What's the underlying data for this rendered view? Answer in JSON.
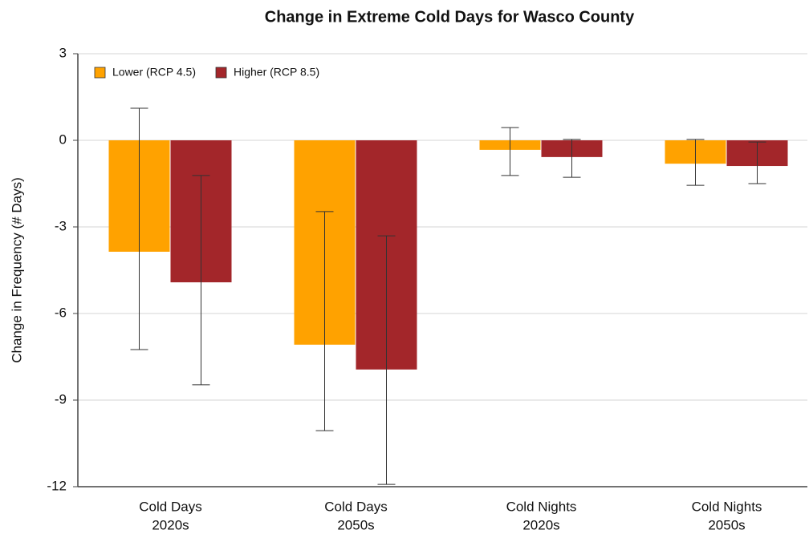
{
  "chart_data": {
    "type": "bar",
    "title": "Change in Extreme Cold Days for Wasco County",
    "y_label": "Change in Frequency (# Days)",
    "categories": [
      [
        "Cold Days",
        "2020s"
      ],
      [
        "Cold Days",
        "2050s"
      ],
      [
        "Cold Nights",
        "2020s"
      ],
      [
        "Cold Nights",
        "2050s"
      ]
    ],
    "series": [
      {
        "name": "Lower (RCP 4.5)",
        "color": "#ffa200",
        "values": [
          -3.86,
          -7.08,
          -0.33,
          -0.81
        ],
        "lower_bound": [
          -7.25,
          -10.06,
          -1.22,
          -1.56
        ],
        "upper_bound": [
          1.11,
          -2.47,
          0.44,
          0.03
        ]
      },
      {
        "name": "Higher (RCP 8.5)",
        "color": "#a3262a",
        "values": [
          -4.92,
          -7.94,
          -0.58,
          -0.89
        ],
        "lower_bound": [
          -8.47,
          -11.92,
          -1.28,
          -1.5
        ],
        "upper_bound": [
          -1.22,
          -3.31,
          0.03,
          -0.06
        ]
      }
    ],
    "ylim": [
      -12,
      3
    ],
    "yticks": [
      -12,
      -9,
      -6,
      -3,
      0,
      3
    ],
    "grid": true,
    "legend": "top-left"
  }
}
